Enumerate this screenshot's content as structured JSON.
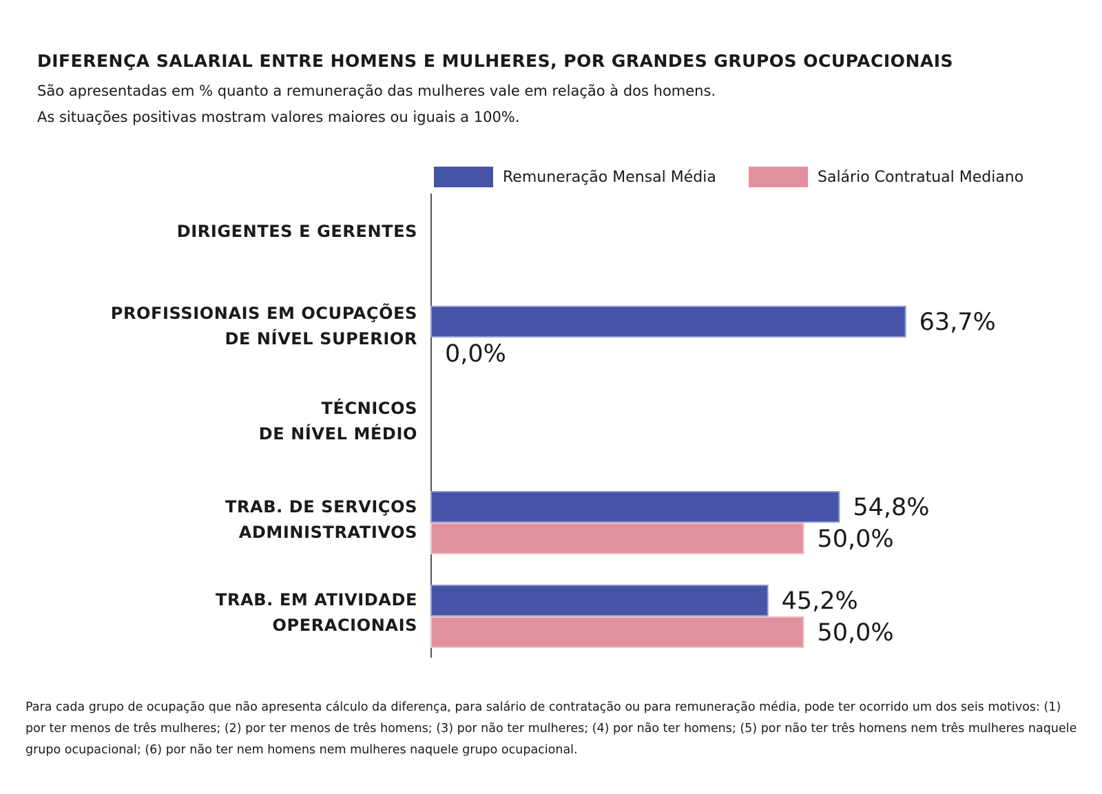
{
  "title": "DIFERENÇA SALARIAL ENTRE HOMENS E MULHERES, POR GRANDES GRUPOS OCUPACIONAIS",
  "subtitle_line1": "São apresentadas em % quanto a remuneração das mulheres vale em relação à dos homens.",
  "subtitle_line2": "As situações positivas mostram valores maiores ou iguais a 100%.",
  "footnote": "Para cada grupo de ocupação que não apresenta cálculo da diferença, para salário de contratação ou para remuneração média, pode ter ocorrido um dos seis motivos: (1) por ter menos de três mulheres; (2) por ter menos de três homens; (3) por não ter mulheres; (4) por não ter homens; (5) por não ter três homens nem três mulheres naquele grupo ocupacional; (6) por não ter nem homens nem mulheres naquele grupo ocupacional.",
  "colors": {
    "series1": "#4654a8",
    "series2": "#e0909e",
    "axis": "#1a1a1a",
    "text": "#1a1a1a"
  },
  "chart_data": {
    "type": "bar",
    "orientation": "horizontal",
    "title": "DIFERENÇA SALARIAL ENTRE HOMENS E MULHERES, POR GRANDES GRUPOS OCUPACIONAIS",
    "categories": [
      "DIRIGENTES E GERENTES",
      "PROFISSIONAIS EM OCUPAÇÕES\nDE NÍVEL SUPERIOR",
      "TÉCNICOS\nDE NÍVEL MÉDIO",
      "TRAB. DE SERVIÇOS\nADMINISTRATIVOS",
      "TRAB. EM ATIVIDADE\nOPERACIONAIS"
    ],
    "series": [
      {
        "name": "Remuneração Mensal Média",
        "values": [
          null,
          63.7,
          null,
          54.8,
          45.2
        ],
        "labels": [
          null,
          "63,7%",
          null,
          "54,8%",
          "45,2%"
        ]
      },
      {
        "name": "Salário Contratual Mediano",
        "values": [
          null,
          0.0,
          null,
          50.0,
          50.0
        ],
        "labels": [
          null,
          "0,0%",
          null,
          "50,0%",
          "50,0%"
        ]
      }
    ],
    "xlim": [
      0,
      100
    ],
    "legend": "top-right",
    "xlabel": "",
    "ylabel": ""
  }
}
